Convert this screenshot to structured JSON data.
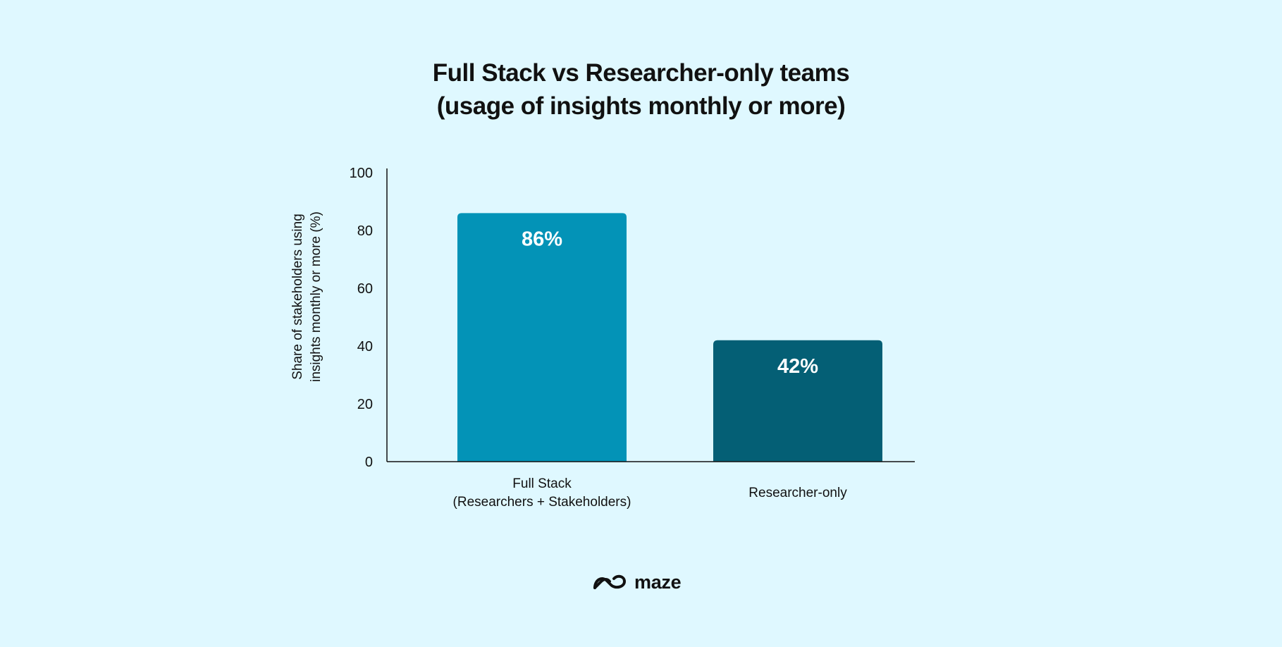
{
  "chart_data": {
    "type": "bar",
    "title_line1": "Full Stack vs Researcher-only teams",
    "title_line2": "(usage of insights monthly or more)",
    "ylabel_line1": "Share of stakeholders using",
    "ylabel_line2": "insights monthly or more (%)",
    "ylim": [
      0,
      100
    ],
    "yticks": [
      "0",
      "20",
      "40",
      "60",
      "80",
      "100"
    ],
    "categories": [
      {
        "line1": "Full Stack",
        "line2": "(Researchers + Stakeholders)"
      },
      {
        "line1": "Researcher-only",
        "line2": ""
      }
    ],
    "values": [
      86,
      42
    ],
    "data_labels": [
      "86%",
      "42%"
    ],
    "colors": [
      "#0393b7",
      "#045f75"
    ]
  },
  "brand": {
    "name": "maze",
    "logo_icon": "maze-logo-icon"
  }
}
